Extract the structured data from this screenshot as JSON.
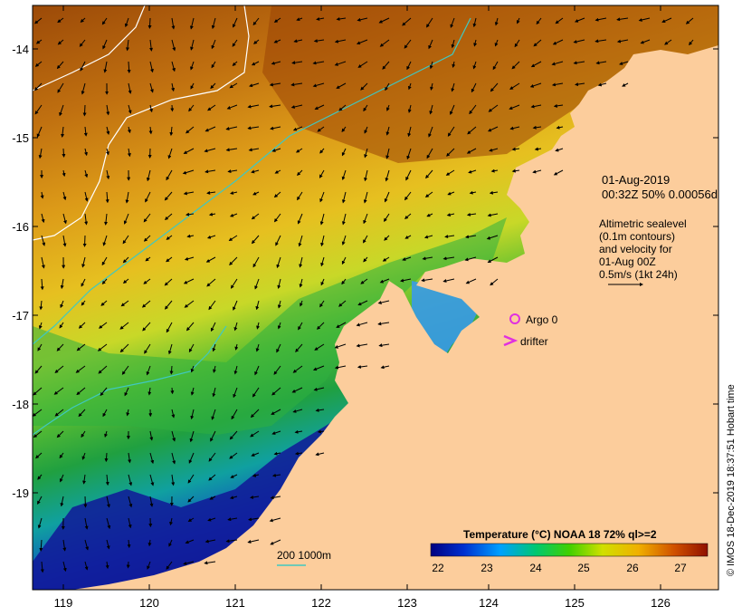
{
  "map": {
    "lon_ticks": [
      "119",
      "120",
      "121",
      "122",
      "123",
      "124",
      "125",
      "126"
    ],
    "lat_ticks": [
      "-14",
      "-15",
      "-16",
      "-17",
      "-18",
      "-19"
    ],
    "annotation": {
      "date": "01-Aug-2019",
      "time_line": "00:32Z  50% 0.00056d",
      "alt_lines": [
        "Altimetric sealevel",
        "(0.1m contours)",
        "and velocity for",
        "01-Aug 00Z",
        "0.5m/s (1kt 24h)"
      ]
    },
    "markers": {
      "argo_label": "Argo 0",
      "drifter_label": "drifter",
      "argo_color": "#e030e0"
    },
    "depth_legend": "200  1000m",
    "colorbar": {
      "title": "Temperature (°C) NOAA 18 72% ql>=2",
      "ticks": [
        "22",
        "23",
        "24",
        "25",
        "26",
        "27"
      ]
    },
    "credit": "© IMOS 18-Dec-2019 18:37:51 Hobart time",
    "colors": {
      "land": "#fccd9c",
      "isobath_200": "#40c8c0",
      "isobath_1000": "#ffffff"
    }
  }
}
